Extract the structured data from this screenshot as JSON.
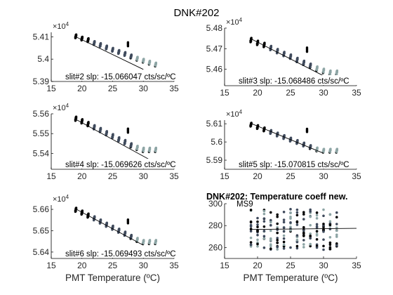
{
  "figure_title": "DNK#202",
  "chart_data": [
    {
      "type": "scatter",
      "title": "",
      "annotation": "slit#2 slp: -15.066047 cts/sc/ºC",
      "exponent_label": "×10",
      "exponent_power": "4",
      "xlabel": "",
      "ylabel": "",
      "xlim": [
        15,
        35
      ],
      "xticks": [
        15,
        20,
        25,
        30,
        35
      ],
      "ylim": [
        5.39,
        5.412
      ],
      "yticks": [
        5.39,
        5.4,
        5.41
      ],
      "ytick_labels": [
        "5.39",
        "5.4",
        "5.41"
      ],
      "fit_line": {
        "x": [
          19,
          30
        ],
        "y": [
          5.41,
          5.3954
        ]
      },
      "outlier": {
        "x": 27.5,
        "y": [
          5.4058,
          5.4075
        ]
      },
      "x": [
        19,
        20,
        21,
        22,
        23,
        24,
        25,
        26,
        27,
        28,
        29,
        30,
        31,
        32
      ],
      "series": [
        {
          "values": [
            5.4102,
            5.4092,
            5.4085,
            5.4072,
            5.4063,
            5.4052,
            5.4042,
            5.4032,
            5.4023,
            5.4012,
            5.4002,
            5.3993,
            5.3984,
            5.3976
          ]
        }
      ]
    },
    {
      "type": "scatter",
      "title": "",
      "annotation": "slit#3 slp: -15.068486 cts/sc/ºC",
      "exponent_label": "×10",
      "exponent_power": "4",
      "xlabel": "",
      "ylabel": "",
      "xlim": [
        15,
        35
      ],
      "xticks": [
        15,
        20,
        25,
        30,
        35
      ],
      "ylim": [
        5.452,
        5.48
      ],
      "yticks": [
        5.46,
        5.47,
        5.48
      ],
      "ytick_labels": [
        "5.46",
        "5.47",
        "5.48"
      ],
      "fit_line": {
        "x": [
          19,
          30
        ],
        "y": [
          5.4748,
          5.4568
        ]
      },
      "outlier": {
        "x": 27.5,
        "y": [
          5.4685,
          5.4705
        ]
      },
      "x": [
        19,
        20,
        21,
        22,
        23,
        24,
        25,
        26,
        27,
        28,
        29,
        30,
        31,
        32
      ],
      "series": [
        {
          "values": [
            5.4742,
            5.4728,
            5.4718,
            5.4703,
            5.4688,
            5.4674,
            5.4661,
            5.4645,
            5.4631,
            5.4617,
            5.4603,
            5.4592,
            5.4583,
            5.4583
          ]
        }
      ]
    },
    {
      "type": "scatter",
      "title": "",
      "annotation": "slit#4 slp: -15.069626 cts/sc/ºC",
      "exponent_label": "×10",
      "exponent_power": "4",
      "xlabel": "",
      "ylabel": "",
      "xlim": [
        15,
        35
      ],
      "xticks": [
        15,
        20,
        25,
        30,
        35
      ],
      "ylim": [
        5.532,
        5.56
      ],
      "yticks": [
        5.54,
        5.55,
        5.56
      ],
      "ytick_labels": [
        "5.54",
        "5.55",
        "5.56"
      ],
      "fit_line": {
        "x": [
          19,
          33
        ],
        "y": [
          5.5572,
          5.5335
        ]
      },
      "outlier": {
        "x": 27.5,
        "y": [
          5.5505,
          5.5525
        ]
      },
      "x": [
        19,
        20,
        21,
        22,
        23,
        24,
        25,
        26,
        27,
        28,
        29,
        30,
        31,
        32
      ],
      "series": [
        {
          "values": [
            5.5575,
            5.5562,
            5.5548,
            5.5532,
            5.5518,
            5.5502,
            5.5487,
            5.5471,
            5.5457,
            5.5441,
            5.5428,
            5.5418,
            5.5418,
            5.5418
          ]
        }
      ]
    },
    {
      "type": "scatter",
      "title": "",
      "annotation": "slit#5 slp: -15.070815 cts/sc/ºC",
      "exponent_label": "×10",
      "exponent_power": "4",
      "xlabel": "",
      "ylabel": "",
      "xlim": [
        15,
        35
      ],
      "xticks": [
        15,
        20,
        25,
        30,
        35
      ],
      "ylim": [
        5.585,
        5.612
      ],
      "yticks": [
        5.59,
        5.6,
        5.61
      ],
      "ytick_labels": [
        "5.59",
        "5.6",
        "5.61"
      ],
      "fit_line": {
        "x": [
          19,
          30
        ],
        "y": [
          5.6102,
          5.5938
        ]
      },
      "outlier": {
        "x": 27.5,
        "y": [
          5.6055,
          5.6072
        ]
      },
      "x": [
        19,
        20,
        21,
        22,
        23,
        24,
        25,
        26,
        27,
        28,
        29,
        30,
        31,
        32
      ],
      "series": [
        {
          "values": [
            5.6095,
            5.6082,
            5.6069,
            5.6055,
            5.6041,
            5.6027,
            5.6013,
            5.6,
            5.5986,
            5.5972,
            5.5959,
            5.5952,
            5.5952,
            5.5952
          ]
        }
      ]
    },
    {
      "type": "scatter",
      "title": "",
      "annotation": "slit#6 slp: -15.069493 cts/sc/ºC",
      "exponent_label": "×10",
      "exponent_power": "4",
      "xlabel": "PMT Temperature (ºC)",
      "ylabel": "",
      "xlim": [
        15,
        35
      ],
      "xticks": [
        15,
        20,
        25,
        30,
        35
      ],
      "ylim": [
        5.637,
        5.662
      ],
      "yticks": [
        5.64,
        5.65,
        5.66
      ],
      "ytick_labels": [
        "5.64",
        "5.65",
        "5.66"
      ],
      "fit_line": {
        "x": [
          19,
          30
        ],
        "y": [
          5.6602,
          5.6432
        ]
      },
      "outlier": {
        "x": 27.5,
        "y": [
          5.6535,
          5.6552
        ]
      },
      "x": [
        19,
        20,
        21,
        22,
        23,
        24,
        25,
        26,
        27,
        28,
        29,
        30,
        31,
        32
      ],
      "series": [
        {
          "values": [
            5.6598,
            5.6585,
            5.6571,
            5.6558,
            5.6543,
            5.6528,
            5.6514,
            5.65,
            5.6486,
            5.6471,
            5.6457,
            5.6447,
            5.6447,
            5.6447
          ]
        }
      ]
    },
    {
      "type": "scatter",
      "title": "DNK#202: Temperature coeff new.",
      "annotation": "MS9",
      "xlabel": "PMT Temperature (ºC)",
      "ylabel": "",
      "xlim": [
        15,
        35
      ],
      "xticks": [
        15,
        20,
        25,
        30,
        35
      ],
      "ylim": [
        250,
        300
      ],
      "yticks": [
        260,
        280,
        300
      ],
      "ytick_labels": [
        "260",
        "280",
        "300"
      ],
      "fit_line": {
        "x": [
          19,
          35
        ],
        "y": [
          276.5,
          277.5
        ]
      },
      "x": [
        19,
        20,
        21,
        22,
        23,
        24,
        25,
        26,
        27,
        28,
        29,
        30,
        31,
        32
      ],
      "scatter_band": {
        "ymin": 258,
        "ymax": 296
      }
    }
  ],
  "colors": {
    "axis": "#000000",
    "dark_points": "#000000",
    "mid_points": "#3f4a5c",
    "light_points": "#8da5a5",
    "fit_line": "#000000"
  }
}
